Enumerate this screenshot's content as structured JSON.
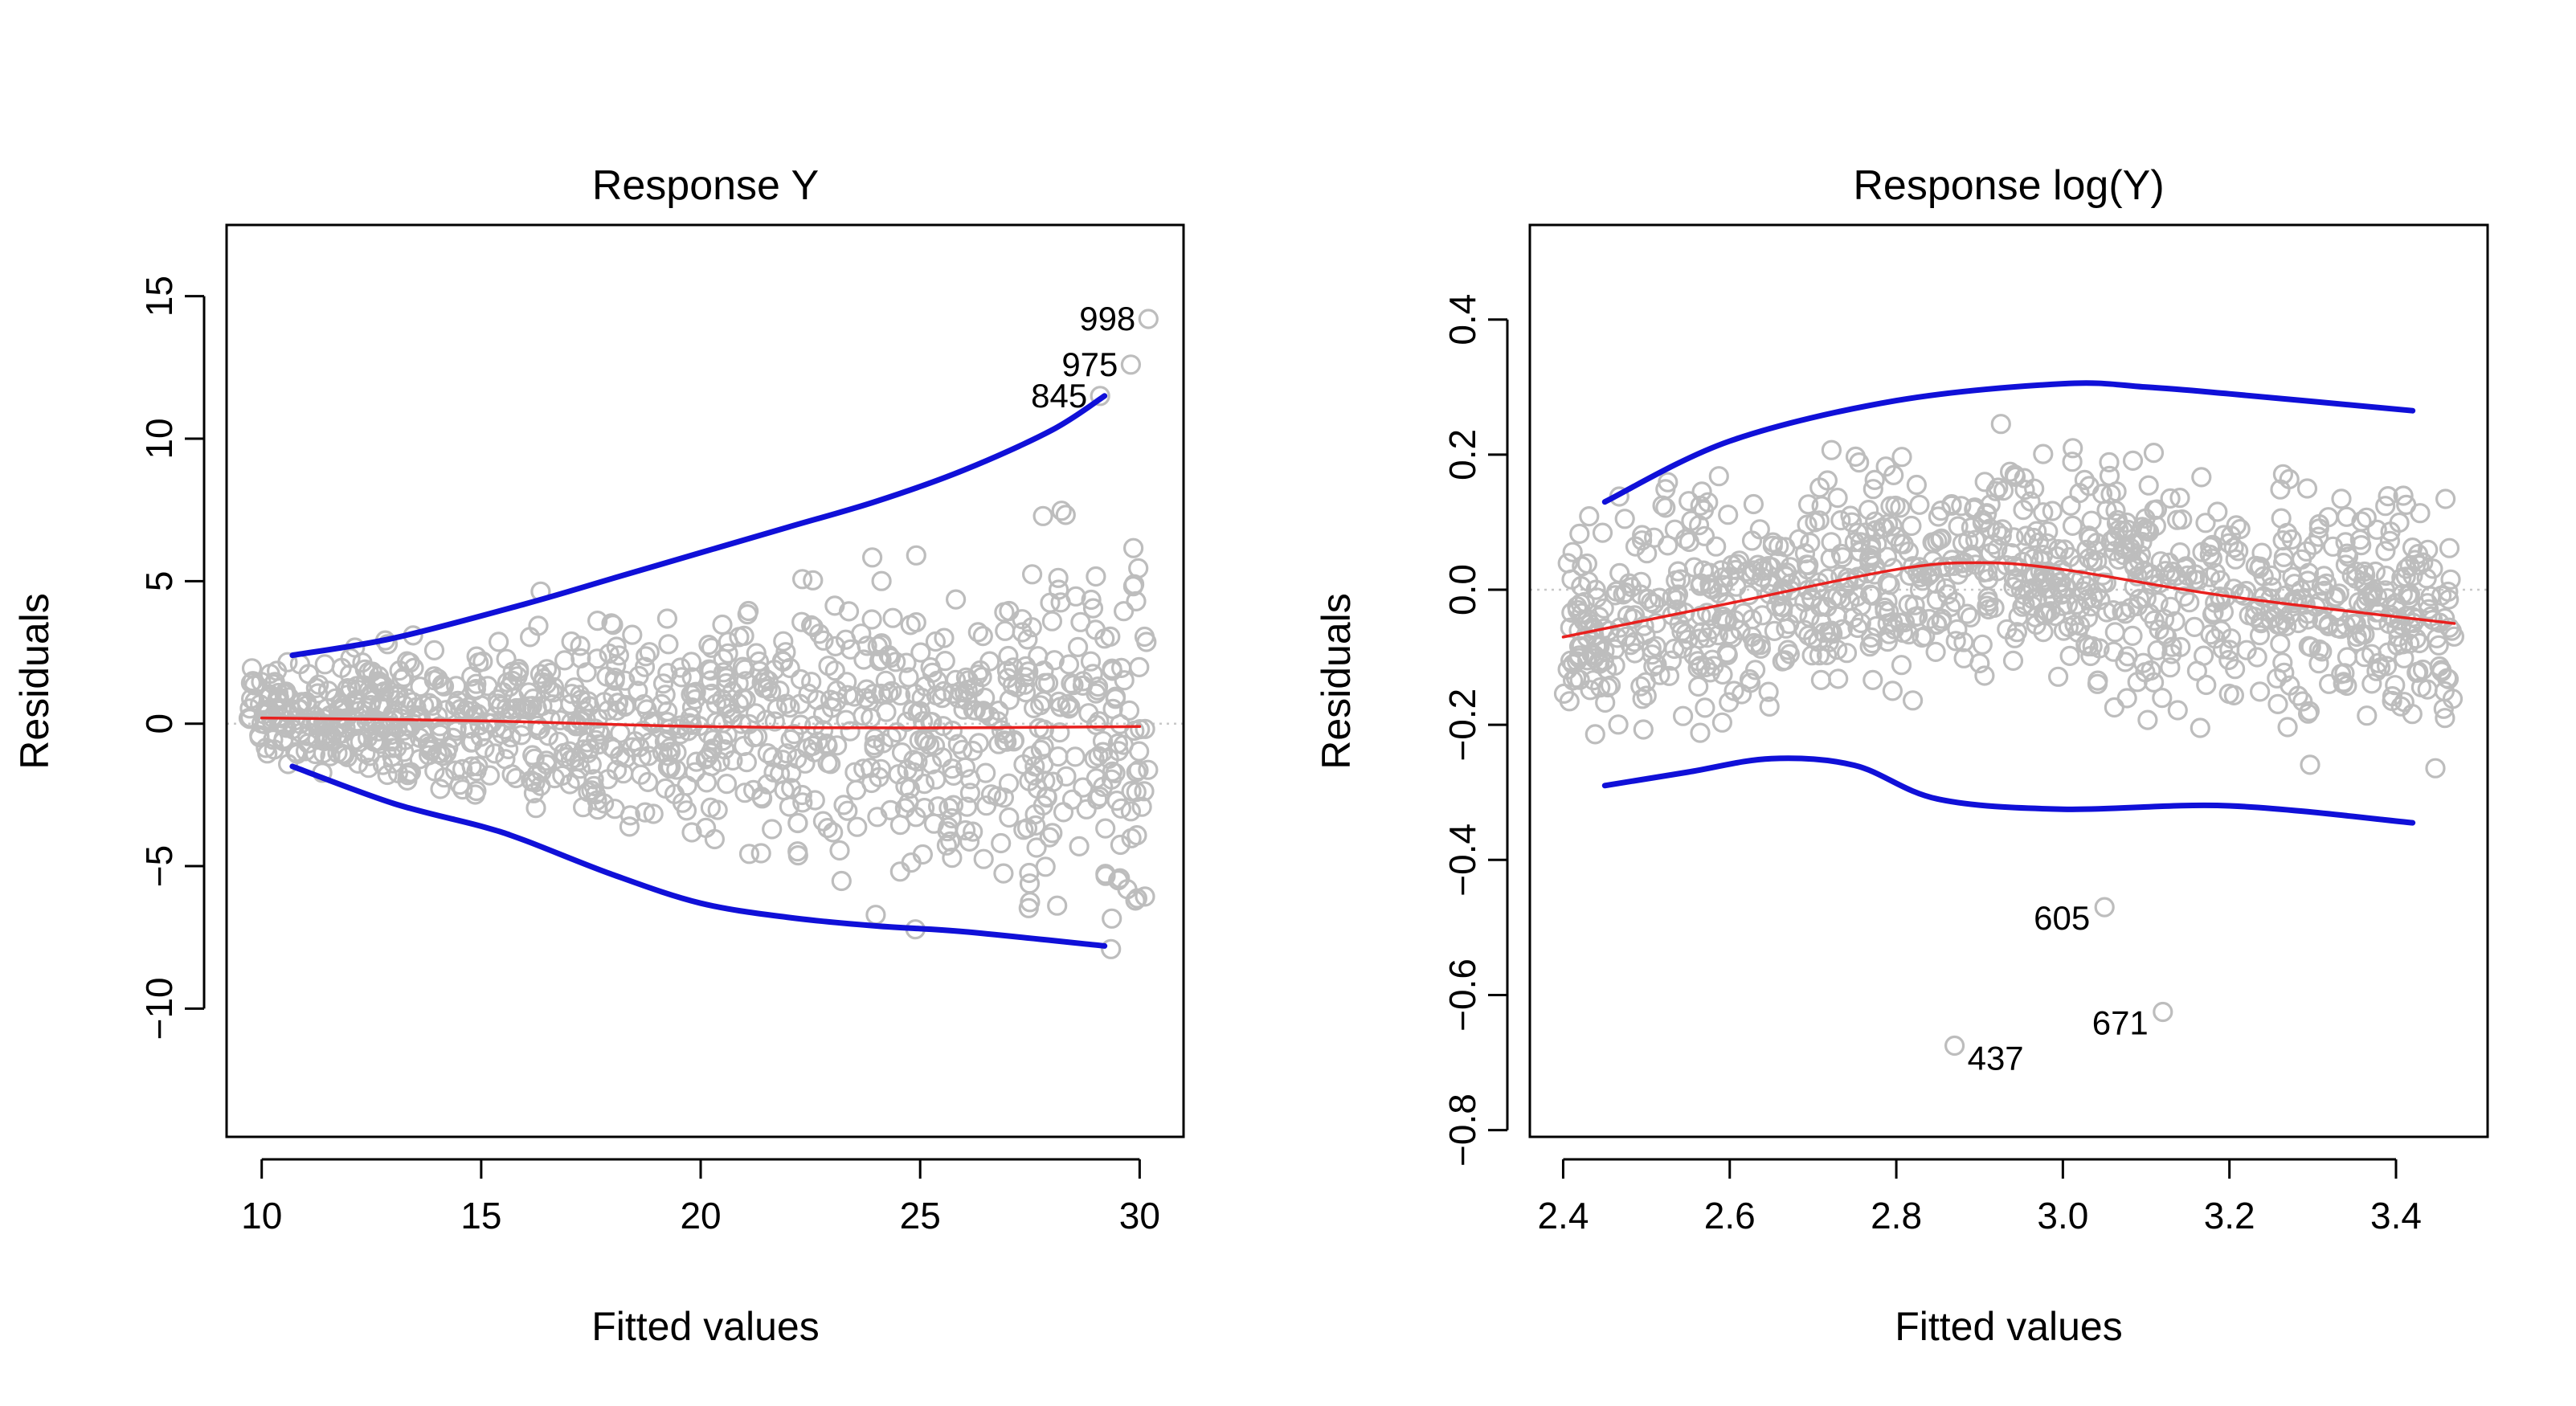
{
  "chart_data": [
    {
      "type": "scatter",
      "title": "Response Y",
      "xlabel": "Fitted values",
      "ylabel": "Residuals",
      "xlim": [
        9.2,
        31.0
      ],
      "ylim": [
        -14.5,
        17.5
      ],
      "xticks": [
        10,
        15,
        20,
        25,
        30
      ],
      "yticks": [
        -10,
        -5,
        0,
        5,
        10,
        15
      ],
      "xtick_labels": [
        "10",
        "15",
        "20",
        "25",
        "30"
      ],
      "ytick_labels": [
        "−10",
        "−5",
        "0",
        "5",
        "10",
        "15"
      ],
      "grid": false,
      "colors": {
        "points": "#bdbdbd",
        "smooth": "#e8201e",
        "band": "#1010d8",
        "zero_line": "#c8c8c8"
      },
      "zero_line": 0,
      "point_count": 1000,
      "points_description": "about 1000 residuals for fitted values from 9.7 to 30.2; spread around 0 widens from about ±2 at fitted value 10 to about ±8 near 29",
      "generator": {
        "x_range": [
          9.7,
          30.2
        ],
        "center_x": [
          10,
          30
        ],
        "center_y": [
          0.2,
          0.0
        ],
        "spread_x": [
          10,
          29
        ],
        "spread_y": [
          1.3,
          5.0
        ],
        "seed": 11
      },
      "series": [
        {
          "name": "smooth",
          "type": "line",
          "x": [
            10,
            15,
            20,
            25,
            30
          ],
          "y": [
            0.2,
            0.1,
            -0.1,
            -0.15,
            -0.1
          ]
        },
        {
          "name": "upper_band",
          "type": "line",
          "x": [
            10.7,
            13,
            16,
            18,
            20,
            22,
            24,
            26,
            28,
            29.2
          ],
          "y": [
            2.4,
            3.0,
            4.2,
            5.1,
            6.0,
            6.9,
            7.8,
            8.9,
            10.3,
            11.5
          ]
        },
        {
          "name": "lower_band",
          "type": "line",
          "x": [
            10.7,
            13,
            15,
            16,
            18,
            20,
            22,
            24,
            26,
            29.2
          ],
          "y": [
            -1.5,
            -2.8,
            -3.6,
            -4.1,
            -5.3,
            -6.3,
            -6.8,
            -7.1,
            -7.3,
            -7.8
          ]
        }
      ],
      "annotations": [
        {
          "label": "998",
          "x": 30.2,
          "y": 14.2
        },
        {
          "label": "975",
          "x": 29.8,
          "y": 12.6
        },
        {
          "label": "845",
          "x": 29.1,
          "y": 11.5
        }
      ]
    },
    {
      "type": "scatter",
      "title": "Response log(Y)",
      "xlabel": "Fitted values",
      "ylabel": "Residuals",
      "xlim": [
        2.36,
        3.51
      ],
      "ylim": [
        -0.81,
        0.54
      ],
      "xticks": [
        2.4,
        2.6,
        2.8,
        3.0,
        3.2,
        3.4
      ],
      "yticks": [
        -0.8,
        -0.6,
        -0.4,
        -0.2,
        0.0,
        0.2,
        0.4
      ],
      "xtick_labels": [
        "2.4",
        "2.6",
        "2.8",
        "3.0",
        "3.2",
        "3.4"
      ],
      "ytick_labels": [
        "−0.8",
        "−0.6",
        "−0.4",
        "−0.2",
        "0.0",
        "0.2",
        "0.4"
      ],
      "grid": false,
      "colors": {
        "points": "#bdbdbd",
        "smooth": "#e8201e",
        "band": "#1010d8",
        "zero_line": "#c8c8c8"
      },
      "zero_line": 0,
      "point_count": 1000,
      "points_description": "about 1000 residuals for fitted values from 2.40 to 3.47; roughly constant spread of about ±0.15 around a gently curved centre",
      "generator": {
        "x_range": [
          2.4,
          3.47
        ],
        "center_x": [
          2.4,
          3.47
        ],
        "center_y": [
          0.0,
          0.0
        ],
        "spread_x": [
          2.4,
          3.47
        ],
        "spread_y": [
          0.13,
          0.13
        ],
        "seed": 23
      },
      "series": [
        {
          "name": "smooth",
          "type": "line",
          "x": [
            2.4,
            2.6,
            2.8,
            2.9,
            3.0,
            3.2,
            3.47
          ],
          "y": [
            -0.07,
            -0.02,
            0.03,
            0.04,
            0.03,
            -0.01,
            -0.05
          ]
        },
        {
          "name": "upper_band",
          "type": "line",
          "x": [
            2.45,
            2.6,
            2.8,
            3.0,
            3.1,
            3.2,
            3.42
          ],
          "y": [
            0.13,
            0.22,
            0.28,
            0.305,
            0.3,
            0.29,
            0.265
          ]
        },
        {
          "name": "lower_band",
          "type": "line",
          "x": [
            2.45,
            2.55,
            2.65,
            2.75,
            2.85,
            3.0,
            3.2,
            3.42
          ],
          "y": [
            -0.29,
            -0.27,
            -0.25,
            -0.26,
            -0.31,
            -0.325,
            -0.32,
            -0.345
          ]
        }
      ],
      "annotations": [
        {
          "label": "605",
          "x": 3.05,
          "y": -0.47
        },
        {
          "label": "671",
          "x": 3.12,
          "y": -0.625
        },
        {
          "label": "437",
          "x": 2.87,
          "y": -0.675
        }
      ]
    }
  ]
}
